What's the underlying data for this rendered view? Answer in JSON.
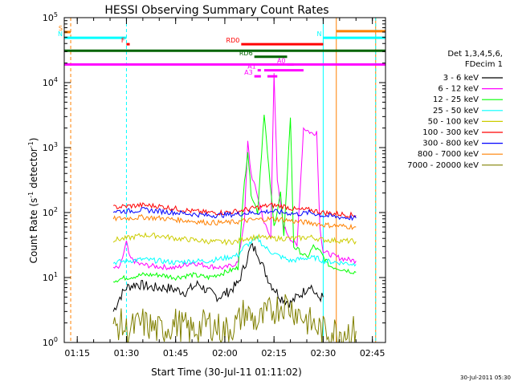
{
  "chart_data": {
    "type": "line",
    "title": "HESSI Observing Summary Count Rates",
    "xlabel": "Start Time (30-Jul-11 01:11:02)",
    "ylabel": "Count Rate (s-1 detector-1)",
    "ylabel_parts": {
      "a": "Count Rate (s",
      "sup1": "-1",
      "b": " detector",
      "sup2": "-1",
      "c": ")"
    },
    "y_scale": "log",
    "xlim": [
      "01:11:02",
      "02:49:00"
    ],
    "ylim": [
      1,
      100000
    ],
    "x_ticks": [
      "01:15",
      "01:30",
      "01:45",
      "02:00",
      "02:15",
      "02:30",
      "02:45"
    ],
    "y_ticks": [
      {
        "v": 1,
        "b": "10",
        "e": "0"
      },
      {
        "v": 10,
        "b": "10",
        "e": "1"
      },
      {
        "v": 100,
        "b": "10",
        "e": "2"
      },
      {
        "v": 1000,
        "b": "10",
        "e": "3"
      },
      {
        "v": 10000,
        "b": "10",
        "e": "4"
      },
      {
        "v": 100000,
        "b": "10",
        "e": "5"
      }
    ],
    "legend": {
      "header": [
        "Det 1,3,4,5,6,",
        "FDecim 1"
      ],
      "placement": "right",
      "entries": [
        {
          "label": "3 - 6 keV",
          "color": "#000000"
        },
        {
          "label": "6 - 12 keV",
          "color": "#ff00ff"
        },
        {
          "label": "12 - 25 keV",
          "color": "#00ff00"
        },
        {
          "label": "25 - 50 keV",
          "color": "#00ffff"
        },
        {
          "label": "50 - 100 keV",
          "color": "#cccc00"
        },
        {
          "label": "100 - 300 keV",
          "color": "#ff0000"
        },
        {
          "label": "300 - 800 keV",
          "color": "#0000ff"
        },
        {
          "label": "800 - 7000 keV",
          "color": "#ff8000"
        },
        {
          "label": "7000 - 20000 keV",
          "color": "#808000"
        }
      ]
    },
    "series": [
      {
        "name": "3 - 6 keV",
        "color": "#000000",
        "points": [
          [
            "01:26",
            3
          ],
          [
            "01:28",
            5
          ],
          [
            "01:30",
            7
          ],
          [
            "01:33",
            8
          ],
          [
            "01:38",
            7
          ],
          [
            "01:42",
            7
          ],
          [
            "01:48",
            6
          ],
          [
            "01:52",
            8
          ],
          [
            "01:55",
            6
          ],
          [
            "01:58",
            5
          ],
          [
            "02:01",
            6
          ],
          [
            "02:04",
            8
          ],
          [
            "02:06",
            15
          ],
          [
            "02:08",
            30
          ],
          [
            "02:10",
            25
          ],
          [
            "02:12",
            13
          ],
          [
            "02:14",
            8
          ],
          [
            "02:17",
            5
          ],
          [
            "02:20",
            4
          ],
          [
            "02:22",
            5
          ],
          [
            "02:24",
            6
          ],
          [
            "02:26",
            8
          ],
          [
            "02:28",
            5
          ],
          [
            "02:30",
            5
          ]
        ]
      },
      {
        "name": "6 - 12 keV",
        "color": "#ff00ff",
        "points": [
          [
            "01:26",
            14
          ],
          [
            "01:28",
            14
          ],
          [
            "01:30",
            35
          ],
          [
            "01:31",
            20
          ],
          [
            "01:34",
            16
          ],
          [
            "01:38",
            15
          ],
          [
            "01:45",
            14
          ],
          [
            "01:50",
            17
          ],
          [
            "01:55",
            15
          ],
          [
            "02:00",
            14
          ],
          [
            "02:04",
            17
          ],
          [
            "02:06",
            80
          ],
          [
            "02:07",
            1200
          ],
          [
            "02:08",
            400
          ],
          [
            "02:10",
            180
          ],
          [
            "02:12",
            70
          ],
          [
            "02:14",
            40
          ],
          [
            "02:15",
            15000
          ],
          [
            "02:16",
            300
          ],
          [
            "02:18",
            60
          ],
          [
            "02:20",
            40
          ],
          [
            "02:22",
            30
          ],
          [
            "02:24",
            2000
          ],
          [
            "02:27",
            1600
          ],
          [
            "02:28",
            1800
          ],
          [
            "02:29",
            60
          ],
          [
            "02:30",
            25
          ],
          [
            "02:35",
            20
          ],
          [
            "02:40",
            18
          ]
        ]
      },
      {
        "name": "12 - 25 keV",
        "color": "#00ff00",
        "points": [
          [
            "01:26",
            9
          ],
          [
            "01:30",
            10
          ],
          [
            "01:35",
            11
          ],
          [
            "01:40",
            11
          ],
          [
            "01:45",
            10
          ],
          [
            "01:50",
            11
          ],
          [
            "01:55",
            10
          ],
          [
            "02:00",
            12
          ],
          [
            "02:04",
            14
          ],
          [
            "02:06",
            300
          ],
          [
            "02:07",
            900
          ],
          [
            "02:08",
            200
          ],
          [
            "02:10",
            100
          ],
          [
            "02:12",
            3500
          ],
          [
            "02:13",
            800
          ],
          [
            "02:15",
            60
          ],
          [
            "02:17",
            200
          ],
          [
            "02:18",
            40
          ],
          [
            "02:20",
            3000
          ],
          [
            "02:21",
            30
          ],
          [
            "02:23",
            25
          ],
          [
            "02:25",
            20
          ],
          [
            "02:27",
            30
          ],
          [
            "02:29",
            25
          ],
          [
            "02:32",
            15
          ],
          [
            "02:40",
            12
          ]
        ]
      },
      {
        "name": "25 - 50 keV",
        "color": "#00ffff",
        "points": [
          [
            "01:26",
            17
          ],
          [
            "01:30",
            18
          ],
          [
            "01:35",
            19
          ],
          [
            "01:40",
            18
          ],
          [
            "01:45",
            17
          ],
          [
            "01:50",
            18
          ],
          [
            "01:55",
            18
          ],
          [
            "02:00",
            20
          ],
          [
            "02:04",
            22
          ],
          [
            "02:06",
            30
          ],
          [
            "02:10",
            40
          ],
          [
            "02:12",
            30
          ],
          [
            "02:14",
            25
          ],
          [
            "02:16",
            22
          ],
          [
            "02:18",
            20
          ],
          [
            "02:20",
            18
          ],
          [
            "02:25",
            20
          ],
          [
            "02:28",
            20
          ],
          [
            "02:30",
            18
          ],
          [
            "02:35",
            17
          ],
          [
            "02:40",
            16
          ]
        ]
      },
      {
        "name": "50 - 100 keV",
        "color": "#cccc00",
        "points": [
          [
            "01:26",
            38
          ],
          [
            "01:30",
            40
          ],
          [
            "01:35",
            45
          ],
          [
            "01:40",
            44
          ],
          [
            "01:45",
            40
          ],
          [
            "01:50",
            38
          ],
          [
            "01:55",
            36
          ],
          [
            "02:00",
            35
          ],
          [
            "02:04",
            36
          ],
          [
            "02:06",
            40
          ],
          [
            "02:10",
            42
          ],
          [
            "02:14",
            40
          ],
          [
            "02:18",
            40
          ],
          [
            "02:22",
            40
          ],
          [
            "02:26",
            42
          ],
          [
            "02:30",
            38
          ],
          [
            "02:35",
            37
          ],
          [
            "02:40",
            36
          ]
        ]
      },
      {
        "name": "100 - 300 keV",
        "color": "#ff0000",
        "points": [
          [
            "01:26",
            120
          ],
          [
            "01:30",
            125
          ],
          [
            "01:35",
            130
          ],
          [
            "01:40",
            125
          ],
          [
            "01:45",
            115
          ],
          [
            "01:50",
            105
          ],
          [
            "01:55",
            100
          ],
          [
            "02:00",
            100
          ],
          [
            "02:04",
            105
          ],
          [
            "02:06",
            110
          ],
          [
            "02:10",
            120
          ],
          [
            "02:14",
            130
          ],
          [
            "02:18",
            125
          ],
          [
            "02:22",
            110
          ],
          [
            "02:26",
            110
          ],
          [
            "02:30",
            100
          ],
          [
            "02:35",
            95
          ],
          [
            "02:40",
            90
          ]
        ]
      },
      {
        "name": "300 - 800 keV",
        "color": "#0000ff",
        "points": [
          [
            "01:26",
            105
          ],
          [
            "01:30",
            105
          ],
          [
            "01:35",
            110
          ],
          [
            "01:40",
            105
          ],
          [
            "01:45",
            100
          ],
          [
            "01:50",
            95
          ],
          [
            "01:55",
            90
          ],
          [
            "02:00",
            92
          ],
          [
            "02:04",
            95
          ],
          [
            "02:06",
            98
          ],
          [
            "02:10",
            100
          ],
          [
            "02:14",
            105
          ],
          [
            "02:18",
            100
          ],
          [
            "02:22",
            95
          ],
          [
            "02:26",
            100
          ],
          [
            "02:30",
            90
          ],
          [
            "02:35",
            85
          ],
          [
            "02:40",
            82
          ]
        ]
      },
      {
        "name": "800 - 7000 keV",
        "color": "#ff8000",
        "points": [
          [
            "01:26",
            80
          ],
          [
            "01:30",
            82
          ],
          [
            "01:35",
            85
          ],
          [
            "01:40",
            82
          ],
          [
            "01:45",
            78
          ],
          [
            "01:50",
            74
          ],
          [
            "01:55",
            70
          ],
          [
            "02:00",
            70
          ],
          [
            "02:04",
            72
          ],
          [
            "02:06",
            75
          ],
          [
            "02:10",
            78
          ],
          [
            "02:14",
            80
          ],
          [
            "02:18",
            78
          ],
          [
            "02:22",
            72
          ],
          [
            "02:26",
            70
          ],
          [
            "02:30",
            65
          ],
          [
            "02:35",
            62
          ],
          [
            "02:40",
            60
          ]
        ]
      },
      {
        "name": "7000 - 20000 keV",
        "color": "#808000",
        "points": [
          [
            "01:26",
            1.5
          ],
          [
            "01:28",
            2
          ],
          [
            "01:30",
            1.5
          ],
          [
            "01:35",
            2
          ],
          [
            "01:40",
            1.5
          ],
          [
            "01:45",
            2
          ],
          [
            "01:50",
            1.5
          ],
          [
            "01:55",
            2
          ],
          [
            "02:00",
            1.5
          ],
          [
            "02:04",
            2
          ],
          [
            "02:06",
            3
          ],
          [
            "02:10",
            2
          ],
          [
            "02:14",
            3
          ],
          [
            "02:18",
            4
          ],
          [
            "02:22",
            3
          ],
          [
            "02:26",
            2
          ],
          [
            "02:30",
            1.5
          ],
          [
            "02:35",
            1.5
          ],
          [
            "02:40",
            1.5
          ]
        ]
      }
    ],
    "flag_bars": [
      {
        "label": "S",
        "color": "#ff8000",
        "start": "01:11:02",
        "end": "01:13",
        "y": 60000
      },
      {
        "label": "N",
        "color": "#00ffff",
        "start": "01:11:02",
        "end": "01:30",
        "y": 49000
      },
      {
        "label": "N",
        "color": "#00ffff",
        "start": "02:30",
        "end": "02:49",
        "y": 49000
      },
      {
        "label": "",
        "color": "#ff8000",
        "start": "02:34",
        "end": "02:49",
        "y": 62000
      },
      {
        "label": "F",
        "color": "#ff0000",
        "start": "01:30",
        "end": "01:31",
        "y": 39000
      },
      {
        "label": "RD0",
        "color": "#ff0000",
        "start": "02:05",
        "end": "02:30",
        "y": 39000
      },
      {
        "label": "",
        "color": "#006400",
        "start": "01:11:02",
        "end": "02:49",
        "y": 31000
      },
      {
        "label": "RD6",
        "color": "#006400",
        "start": "02:09",
        "end": "02:19",
        "y": 25000
      },
      {
        "label": "",
        "color": "#ff00ff",
        "start": "01:11:02",
        "end": "02:49",
        "y": 19000
      },
      {
        "label": "A0",
        "color": "#ff00ff",
        "start": "02:19",
        "end": "02:21",
        "y": 19000
      },
      {
        "label": "A1",
        "color": "#ff00ff",
        "start": "02:10",
        "end": "02:11",
        "y": 15500
      },
      {
        "label": "",
        "color": "#ff00ff",
        "start": "02:12",
        "end": "02:24",
        "y": 15500
      },
      {
        "label": "A3",
        "color": "#ff00ff",
        "start": "02:09",
        "end": "02:11",
        "y": 12500
      },
      {
        "label": "",
        "color": "#ff00ff",
        "start": "02:13",
        "end": "02:16",
        "y": 12500
      }
    ],
    "vlines": [
      {
        "t": "01:13",
        "color": "#ff8000",
        "dashed": true
      },
      {
        "t": "01:30",
        "color": "#00ffff",
        "dashed": true
      },
      {
        "t": "02:30",
        "color": "#00ffff",
        "dashed": false
      },
      {
        "t": "02:34",
        "color": "#ff8000",
        "dashed": false
      },
      {
        "t": "02:46",
        "color": "#ff8000",
        "dashed": false
      },
      {
        "t": "02:46",
        "color": "#00ffff",
        "dashed": true
      }
    ],
    "footer": "30-Jul-2011 05:30"
  }
}
